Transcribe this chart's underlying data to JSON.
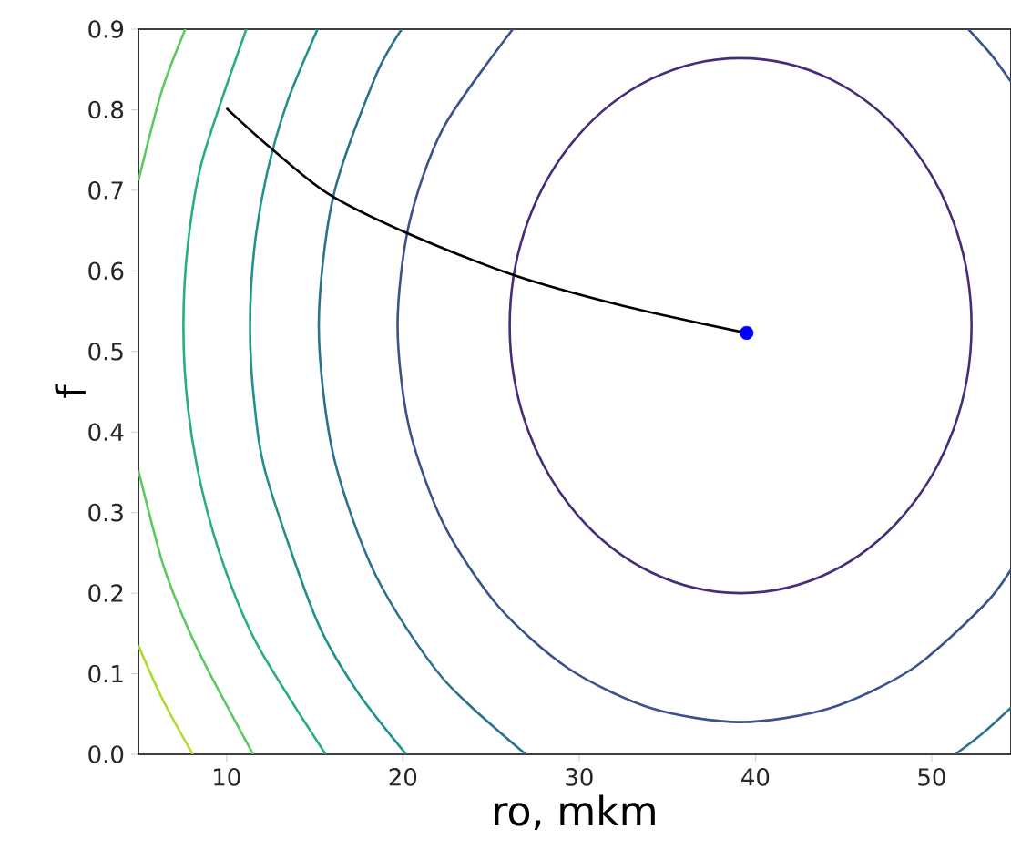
{
  "chart_data": {
    "type": "line",
    "xlabel": "ro, mkm",
    "ylabel": "f",
    "xlim": [
      5,
      54.5
    ],
    "ylim": [
      0,
      0.9
    ],
    "xticks": [
      10,
      20,
      30,
      40,
      50
    ],
    "yticks": [
      {
        "value": 0,
        "label": "0.0"
      },
      0.1,
      0.2,
      0.3,
      0.4,
      0.5,
      0.6,
      0.7,
      0.8,
      0.9
    ],
    "marker": "none",
    "series": [
      {
        "color": "#3b528b",
        "x": [
          54.49,
          53.39,
          52.08,
          null,
          26.24,
          22.31,
          20.36,
          19.7,
          20.36,
          22.31,
          25.4,
          29.43,
          34.12,
          39.16,
          44.2,
          48.89,
          52.92,
          54.49
        ],
        "values": [
          0.835,
          0.868,
          0.9,
          null,
          0.9,
          0.778,
          0.659,
          0.532,
          0.405,
          0.286,
          0.184,
          0.106,
          0.057,
          0.04,
          0.057,
          0.106,
          0.184,
          0.229
        ]
      },
      {
        "color": "#2c728e",
        "x": [
          19.94,
          18.44,
          16.05,
          15.23,
          16.05,
          18.44,
          22.24,
          26.98,
          null,
          51.34,
          52.89,
          54.5
        ],
        "values": [
          0.9,
          0.841,
          0.692,
          0.532,
          0.372,
          0.223,
          0.095,
          0,
          null,
          0,
          0.026,
          0.058
        ]
      },
      {
        "color": "#21918c",
        "x": [
          15.16,
          13.45,
          12.28,
          11.57,
          11.33,
          11.57,
          12.28,
          15.06,
          17.38,
          20.19
        ],
        "values": [
          0.9,
          0.81,
          0.72,
          0.627,
          0.532,
          0.437,
          0.344,
          0.169,
          0.079,
          0
        ]
      },
      {
        "color": "#28ae80",
        "x": [
          11.12,
          8.63,
          7.82,
          7.55,
          7.82,
          8.63,
          9.96,
          11.79,
          15.62
        ],
        "values": [
          0.9,
          0.738,
          0.636,
          0.532,
          0.428,
          0.326,
          0.227,
          0.134,
          0
        ]
      },
      {
        "color": "#5ec962",
        "x": [
          7.66,
          6.32,
          5.0,
          null,
          5.0,
          6.32,
          7.48,
          8.89,
          11.51
        ],
        "values": [
          0.9,
          0.823,
          0.712,
          null,
          0.352,
          0.241,
          0.173,
          0.107,
          0
        ]
      },
      {
        "color": "#addc30",
        "x": [
          5.0,
          6.35,
          8.08
        ],
        "values": [
          0.135,
          0.069,
          0
        ]
      },
      {
        "color": "#000000",
        "x": [
          9.99,
          12.37,
          15.74,
          20.22,
          26.25,
          32.6,
          39.5
        ],
        "values": [
          0.802,
          0.755,
          0.696,
          0.647,
          0.595,
          0.556,
          0.523
        ]
      },
      {
        "type": "scatter",
        "marker": "circle",
        "color": "#0000ff",
        "x": [
          39.5
        ],
        "values": [
          0.523
        ]
      }
    ]
  }
}
